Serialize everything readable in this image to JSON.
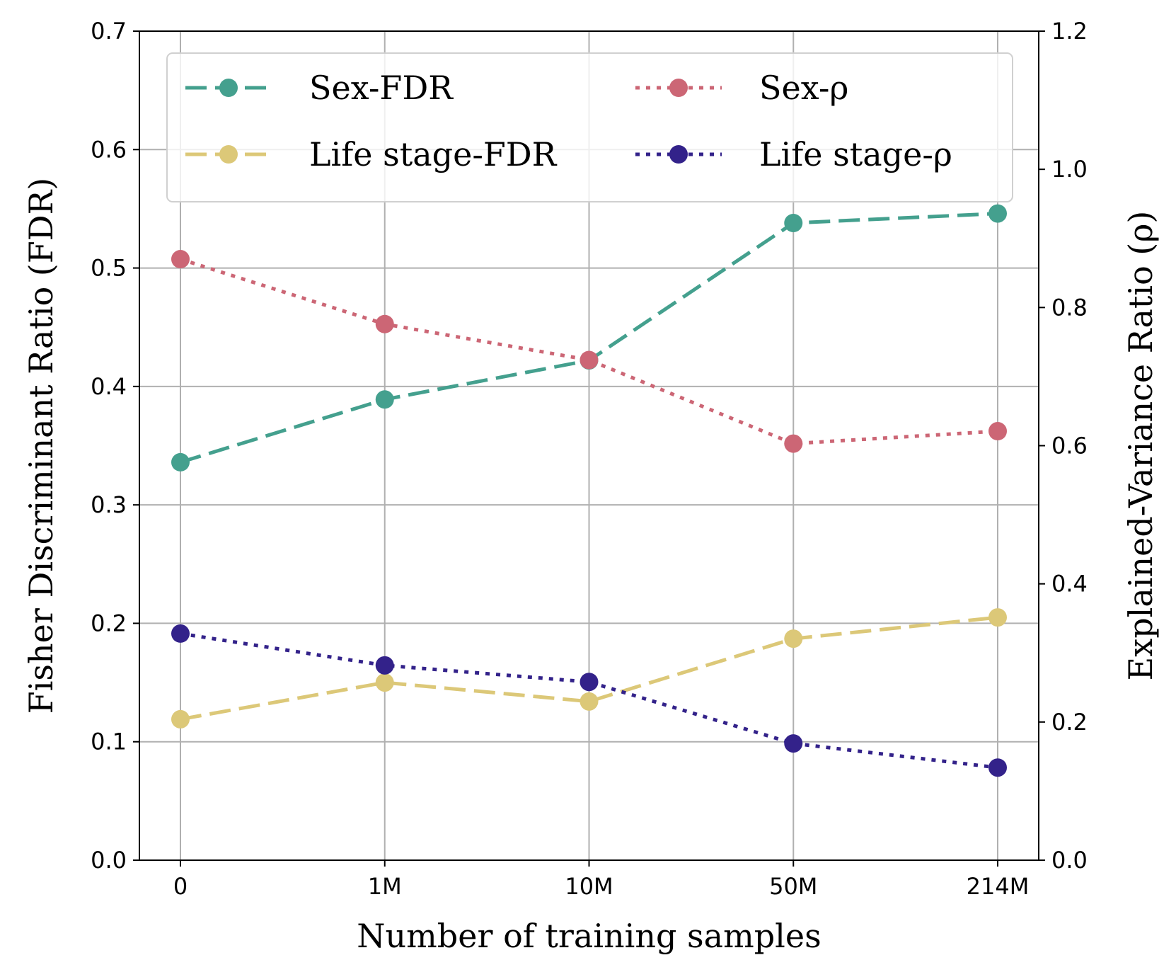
{
  "chart_data": {
    "type": "line",
    "categories": [
      "0",
      "1M",
      "10M",
      "50M",
      "214M"
    ],
    "xlabel": "Number of training samples",
    "ylabel_left": "Fisher Discriminant Ratio (FDR)",
    "ylabel_right": "Explained-Variance Ratio (ρ)",
    "ylim_left": [
      0.0,
      0.7
    ],
    "ylim_right": [
      0.0,
      1.2
    ],
    "yticks_left": [
      "0.0",
      "0.1",
      "0.2",
      "0.3",
      "0.4",
      "0.5",
      "0.6",
      "0.7"
    ],
    "yticks_right": [
      "0.0",
      "0.2",
      "0.4",
      "0.6",
      "0.8",
      "1.0",
      "1.2"
    ],
    "grid": true,
    "legend_position": "top",
    "series": [
      {
        "name": "Sex-FDR",
        "axis": "left",
        "style": "dashed",
        "color": "#44a08e",
        "values": [
          0.336,
          0.389,
          0.422,
          0.538,
          0.546
        ]
      },
      {
        "name": "Life stage-FDR",
        "axis": "left",
        "style": "dashed",
        "color": "#dcc878",
        "values": [
          0.119,
          0.15,
          0.134,
          0.187,
          0.205
        ]
      },
      {
        "name": "Sex-ρ",
        "axis": "right",
        "style": "dotted",
        "color": "#cc6675",
        "values": [
          0.87,
          0.776,
          0.724,
          0.603,
          0.621
        ]
      },
      {
        "name": "Life stage-ρ",
        "axis": "right",
        "style": "dotted",
        "color": "#33228a",
        "values": [
          0.328,
          0.282,
          0.258,
          0.169,
          0.134
        ]
      }
    ]
  }
}
